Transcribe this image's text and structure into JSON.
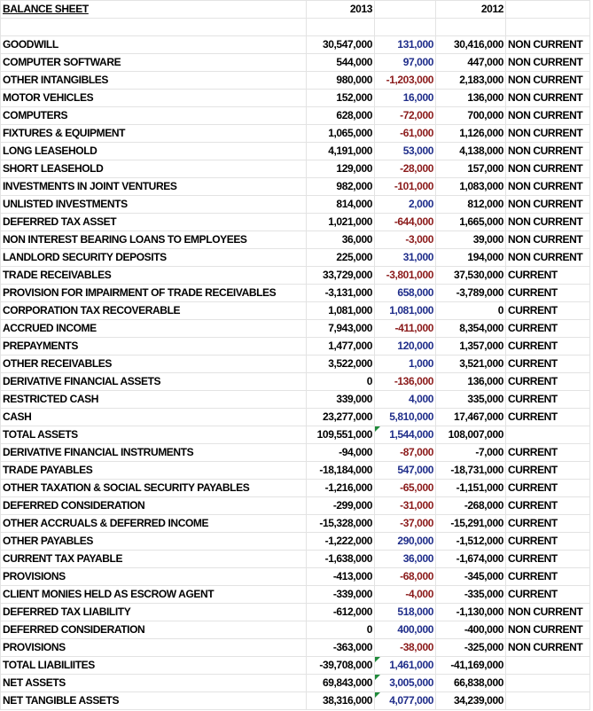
{
  "header": {
    "title": "BALANCE SHEET",
    "year_a": "2013",
    "year_b": "2012"
  },
  "rows": [
    {
      "label": "GOODWILL",
      "y2013": "30,547,000",
      "diff": "131,000",
      "y2012": "30,416,000",
      "type": "NON CURRENT"
    },
    {
      "label": "COMPUTER SOFTWARE",
      "y2013": "544,000",
      "diff": "97,000",
      "y2012": "447,000",
      "type": "NON CURRENT"
    },
    {
      "label": "OTHER INTANGIBLES",
      "y2013": "980,000",
      "diff": "-1,203,000",
      "y2012": "2,183,000",
      "type": "NON CURRENT"
    },
    {
      "label": "MOTOR VEHICLES",
      "y2013": "152,000",
      "diff": "16,000",
      "y2012": "136,000",
      "type": "NON CURRENT"
    },
    {
      "label": "COMPUTERS",
      "y2013": "628,000",
      "diff": "-72,000",
      "y2012": "700,000",
      "type": "NON CURRENT"
    },
    {
      "label": "FIXTURES & EQUIPMENT",
      "y2013": "1,065,000",
      "diff": "-61,000",
      "y2012": "1,126,000",
      "type": "NON CURRENT"
    },
    {
      "label": "LONG LEASEHOLD",
      "y2013": "4,191,000",
      "diff": "53,000",
      "y2012": "4,138,000",
      "type": "NON CURRENT"
    },
    {
      "label": "SHORT LEASEHOLD",
      "y2013": "129,000",
      "diff": "-28,000",
      "y2012": "157,000",
      "type": "NON CURRENT"
    },
    {
      "label": "INVESTMENTS IN JOINT VENTURES",
      "y2013": "982,000",
      "diff": "-101,000",
      "y2012": "1,083,000",
      "type": "NON CURRENT"
    },
    {
      "label": "UNLISTED INVESTMENTS",
      "y2013": "814,000",
      "diff": "2,000",
      "y2012": "812,000",
      "type": "NON CURRENT"
    },
    {
      "label": "DEFERRED TAX ASSET",
      "y2013": "1,021,000",
      "diff": "-644,000",
      "y2012": "1,665,000",
      "type": "NON CURRENT"
    },
    {
      "label": "NON INTEREST BEARING LOANS TO EMPLOYEES",
      "y2013": "36,000",
      "diff": "-3,000",
      "y2012": "39,000",
      "type": "NON CURRENT"
    },
    {
      "label": "LANDLORD SECURITY DEPOSITS",
      "y2013": "225,000",
      "diff": "31,000",
      "y2012": "194,000",
      "type": "NON CURRENT"
    },
    {
      "label": "TRADE RECEIVABLES",
      "y2013": "33,729,000",
      "diff": "-3,801,000",
      "y2012": "37,530,000",
      "type": "CURRENT"
    },
    {
      "label": "PROVISION FOR IMPAIRMENT OF TRADE RECEIVABLES",
      "y2013": "-3,131,000",
      "diff": "658,000",
      "y2012": "-3,789,000",
      "type": "CURRENT"
    },
    {
      "label": "CORPORATION TAX RECOVERABLE",
      "y2013": "1,081,000",
      "diff": "1,081,000",
      "y2012": "0",
      "type": "CURRENT"
    },
    {
      "label": "ACCRUED INCOME",
      "y2013": "7,943,000",
      "diff": "-411,000",
      "y2012": "8,354,000",
      "type": "CURRENT"
    },
    {
      "label": "PREPAYMENTS",
      "y2013": "1,477,000",
      "diff": "120,000",
      "y2012": "1,357,000",
      "type": "CURRENT"
    },
    {
      "label": "OTHER RECEIVABLES",
      "y2013": "3,522,000",
      "diff": "1,000",
      "y2012": "3,521,000",
      "type": "CURRENT"
    },
    {
      "label": "DERIVATIVE FINANCIAL ASSETS",
      "y2013": "0",
      "diff": "-136,000",
      "y2012": "136,000",
      "type": "CURRENT"
    },
    {
      "label": "RESTRICTED CASH",
      "y2013": "339,000",
      "diff": "4,000",
      "y2012": "335,000",
      "type": "CURRENT"
    },
    {
      "label": "CASH",
      "y2013": "23,277,000",
      "diff": "5,810,000",
      "y2012": "17,467,000",
      "type": "CURRENT"
    },
    {
      "label": "TOTAL ASSETS",
      "y2013": "109,551,000",
      "diff": "1,544,000",
      "y2012": "108,007,000",
      "type": "",
      "flag": true
    },
    {
      "label": "DERIVATIVE FINANCIAL INSTRUMENTS",
      "y2013": "-94,000",
      "diff": "-87,000",
      "y2012": "-7,000",
      "type": "CURRENT"
    },
    {
      "label": "TRADE PAYABLES",
      "y2013": "-18,184,000",
      "diff": "547,000",
      "y2012": "-18,731,000",
      "type": "CURRENT"
    },
    {
      "label": "OTHER TAXATION & SOCIAL SECURITY PAYABLES",
      "y2013": "-1,216,000",
      "diff": "-65,000",
      "y2012": "-1,151,000",
      "type": "CURRENT"
    },
    {
      "label": "DEFERRED CONSIDERATION",
      "y2013": "-299,000",
      "diff": "-31,000",
      "y2012": "-268,000",
      "type": "CURRENT"
    },
    {
      "label": "OTHER ACCRUALS & DEFERRED INCOME",
      "y2013": "-15,328,000",
      "diff": "-37,000",
      "y2012": "-15,291,000",
      "type": "CURRENT"
    },
    {
      "label": "OTHER PAYABLES",
      "y2013": "-1,222,000",
      "diff": "290,000",
      "y2012": "-1,512,000",
      "type": "CURRENT"
    },
    {
      "label": "CURRENT TAX PAYABLE",
      "y2013": "-1,638,000",
      "diff": "36,000",
      "y2012": "-1,674,000",
      "type": "CURRENT"
    },
    {
      "label": "PROVISIONS",
      "y2013": "-413,000",
      "diff": "-68,000",
      "y2012": "-345,000",
      "type": "CURRENT"
    },
    {
      "label": "CLIENT MONIES HELD AS ESCROW AGENT",
      "y2013": "-339,000",
      "diff": "-4,000",
      "y2012": "-335,000",
      "type": "CURRENT"
    },
    {
      "label": "DEFERRED TAX LIABILITY",
      "y2013": "-612,000",
      "diff": "518,000",
      "y2012": "-1,130,000",
      "type": "NON CURRENT"
    },
    {
      "label": "DEFERRED CONSIDERATION",
      "y2013": "0",
      "diff": "400,000",
      "y2012": "-400,000",
      "type": "NON CURRENT"
    },
    {
      "label": "PROVISIONS",
      "y2013": "-363,000",
      "diff": "-38,000",
      "y2012": "-325,000",
      "type": "NON CURRENT"
    },
    {
      "label": "TOTAL LIABILIITES",
      "y2013": "-39,708,000",
      "diff": "1,461,000",
      "y2012": "-41,169,000",
      "type": "",
      "flag": true
    },
    {
      "label": "NET ASSETS",
      "y2013": "69,843,000",
      "diff": "3,005,000",
      "y2012": "66,838,000",
      "type": "",
      "flag": true
    },
    {
      "label": "NET TANGIBLE ASSETS",
      "y2013": "38,316,000",
      "diff": "4,077,000",
      "y2012": "34,239,000",
      "type": "",
      "flag": true
    }
  ],
  "colors": {
    "positive_diff": "#1f2d8a",
    "negative_diff": "#8b1a1a",
    "gridline": "#e3e3e3",
    "error_flag": "#1f8a3a"
  }
}
